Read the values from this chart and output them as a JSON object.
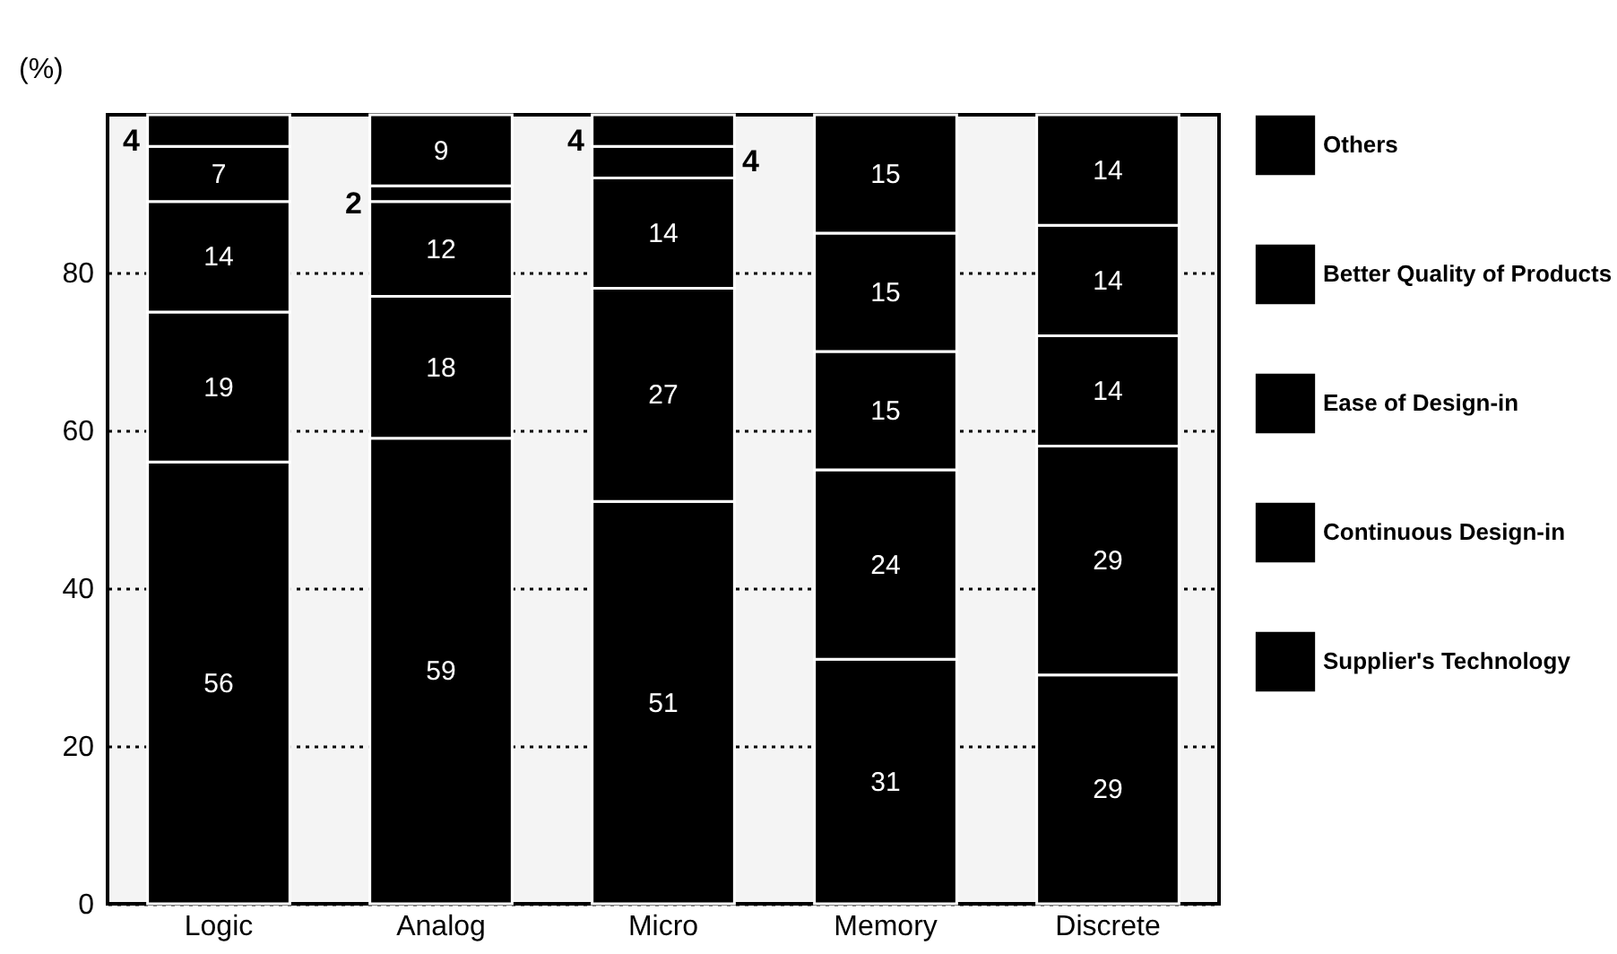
{
  "chart_data": {
    "type": "bar",
    "stacked": true,
    "ylabel": "(%)",
    "categories": [
      "Logic",
      "Analog",
      "Micro",
      "Memory",
      "Discrete"
    ],
    "series": [
      {
        "name": "Supplier's Technology",
        "color": "#000000",
        "values": [
          56,
          59,
          51,
          31,
          29
        ]
      },
      {
        "name": "Continuous Design-in",
        "color": "#000000",
        "values": [
          19,
          18,
          27,
          24,
          29
        ]
      },
      {
        "name": "Ease of Design-in",
        "color": "#000000",
        "values": [
          14,
          12,
          14,
          15,
          14
        ]
      },
      {
        "name": "Better Quality of Products",
        "color": "#000000",
        "values": [
          7,
          2,
          4,
          15,
          14
        ]
      },
      {
        "name": "Others",
        "color": "#000000",
        "values": [
          4,
          9,
          4,
          15,
          14
        ]
      }
    ],
    "ylim": [
      0,
      100
    ],
    "yticks": [
      0,
      20,
      40,
      60,
      80
    ],
    "grid": "y",
    "legend": "right",
    "data_labels": true
  }
}
